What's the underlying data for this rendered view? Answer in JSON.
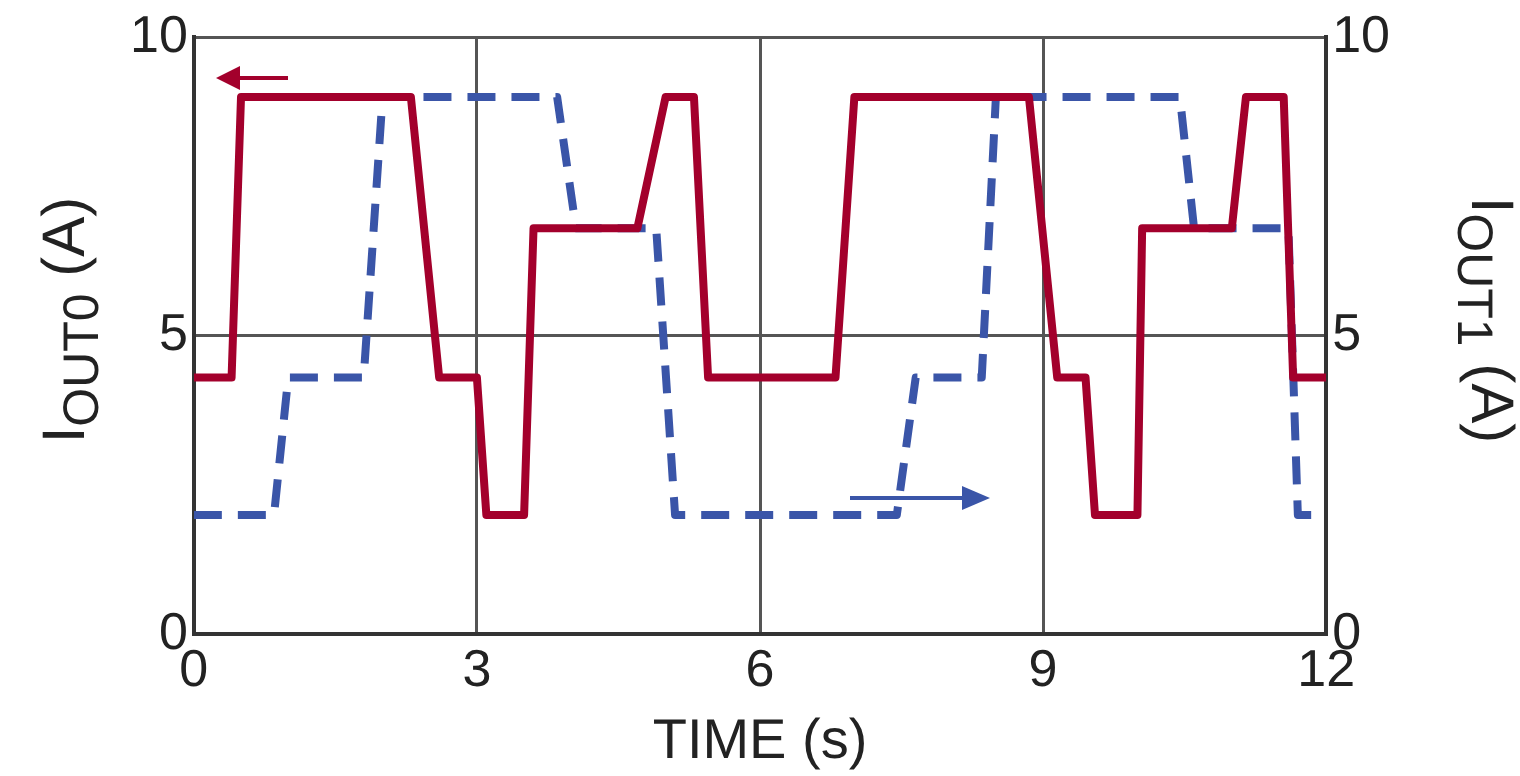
{
  "chart_data": {
    "type": "line",
    "xlabel": "TIME (s)",
    "ylabel": "I$_{OUT0}$ (A)",
    "y2label": "I$_{OUT1}$ (A)",
    "xlim": [
      0,
      12
    ],
    "xticks": [
      0,
      3,
      6,
      9,
      12
    ],
    "ylim": [
      0,
      10
    ],
    "yticks": [
      0,
      5,
      10
    ],
    "y2lim": [
      0,
      10
    ],
    "y2ticks": [
      0,
      5,
      10
    ],
    "grid": true,
    "series": [
      {
        "color": "#a3002c",
        "line_style": "solid",
        "x": [
          0,
          0.4,
          0.5,
          2.3,
          2.6,
          3.0,
          3.1,
          3.5,
          3.6,
          4.7,
          5.0,
          5.3,
          5.45,
          6.8,
          7.0,
          8.85,
          9.15,
          9.45,
          9.55,
          10.0,
          10.05,
          11.0,
          11.15,
          11.55,
          11.65,
          12
        ],
        "values": [
          4.3,
          4.3,
          9,
          9,
          4.3,
          4.3,
          2,
          2,
          6.8,
          6.8,
          9,
          9,
          4.3,
          4.3,
          9,
          9,
          4.3,
          4.3,
          2,
          2,
          6.8,
          6.8,
          9,
          9,
          4.3,
          4.3
        ]
      },
      {
        "color": "#3a55a8",
        "line_style": "dashed",
        "axis": "y2",
        "x": [
          0,
          0.85,
          1.0,
          1.8,
          2.0,
          3.85,
          4.05,
          4.9,
          5.1,
          7.45,
          7.65,
          8.35,
          8.5,
          10.45,
          10.6,
          11.6,
          11.7,
          12
        ],
        "values": [
          2,
          2,
          4.3,
          4.3,
          9,
          9,
          6.8,
          6.8,
          2,
          2,
          4.3,
          4.3,
          9,
          9,
          6.8,
          6.8,
          2,
          2
        ]
      }
    ]
  }
}
